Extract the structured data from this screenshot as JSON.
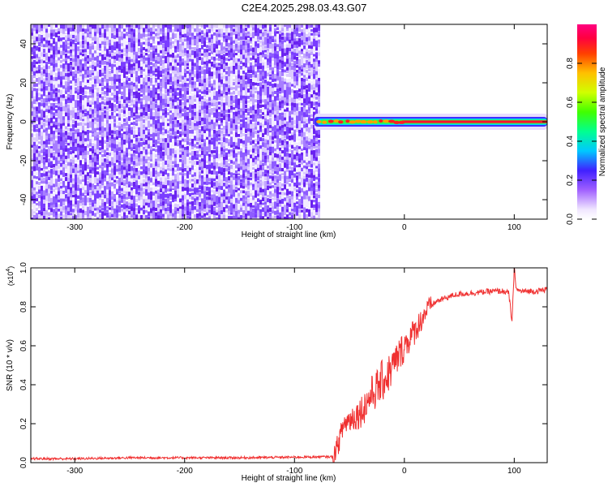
{
  "title": "C2E4.2025.298.03.43.G07",
  "chart_data": [
    {
      "type": "heatmap",
      "xlabel": "Height of straight line (km)",
      "ylabel": "Frequency (Hz)",
      "xlim": [
        -340,
        130
      ],
      "ylim": [
        -50,
        50
      ],
      "xticks": [
        -300,
        -200,
        -100,
        0,
        100
      ],
      "yticks": [
        -40,
        -20,
        0,
        20,
        40
      ],
      "noise_region": {
        "x_range": [
          -340,
          -78
        ],
        "peak_amplitude": 0.22
      },
      "signal_band": {
        "x_range": [
          -82,
          130
        ],
        "center_frequency": 0,
        "peak_amplitude": 0.98
      },
      "colorbar": {
        "label": "Normalized spectral amplitude",
        "range": [
          0,
          1
        ],
        "ticks": [
          0.0,
          0.2,
          0.4,
          0.6,
          0.8
        ],
        "tick_labels": [
          "0.0",
          "0.2",
          "0.4",
          "0.6",
          "0.8"
        ]
      }
    },
    {
      "type": "line",
      "xlabel": "Height of straight line (km)",
      "ylabel": "SNR (10 * v/v)",
      "yscale_label": "(x10",
      "yscale_exponent": "4",
      "yscale_suffix": ")",
      "xlim": [
        -340,
        130
      ],
      "ylim": [
        0,
        1.0
      ],
      "xticks": [
        -300,
        -200,
        -100,
        0,
        100
      ],
      "yticks": [
        0.0,
        0.2,
        0.4,
        0.6,
        0.8,
        1.0
      ],
      "ytick_labels": [
        "0.0",
        "0.2",
        "0.4",
        "0.6",
        "0.8",
        "1.0"
      ],
      "line_color": "#f03030",
      "series": [
        {
          "x": [
            -340,
            -300,
            -250,
            -200,
            -150,
            -100,
            -75,
            -65,
            -60,
            -55,
            -50,
            -45,
            -40,
            -35,
            -30,
            -25,
            -20,
            -15,
            -10,
            -5,
            0,
            5,
            10,
            15,
            20,
            25,
            30,
            35,
            40,
            45,
            50,
            60,
            70,
            80,
            90,
            95,
            98,
            100,
            102,
            105,
            110,
            120,
            130
          ],
          "y": [
            0.02,
            0.02,
            0.025,
            0.025,
            0.025,
            0.028,
            0.03,
            0.03,
            0.1,
            0.2,
            0.22,
            0.24,
            0.26,
            0.3,
            0.35,
            0.38,
            0.42,
            0.45,
            0.5,
            0.55,
            0.6,
            0.64,
            0.68,
            0.73,
            0.78,
            0.81,
            0.83,
            0.84,
            0.85,
            0.86,
            0.865,
            0.87,
            0.875,
            0.88,
            0.88,
            0.87,
            0.72,
            1.0,
            0.89,
            0.88,
            0.88,
            0.88,
            0.89
          ]
        }
      ]
    }
  ]
}
